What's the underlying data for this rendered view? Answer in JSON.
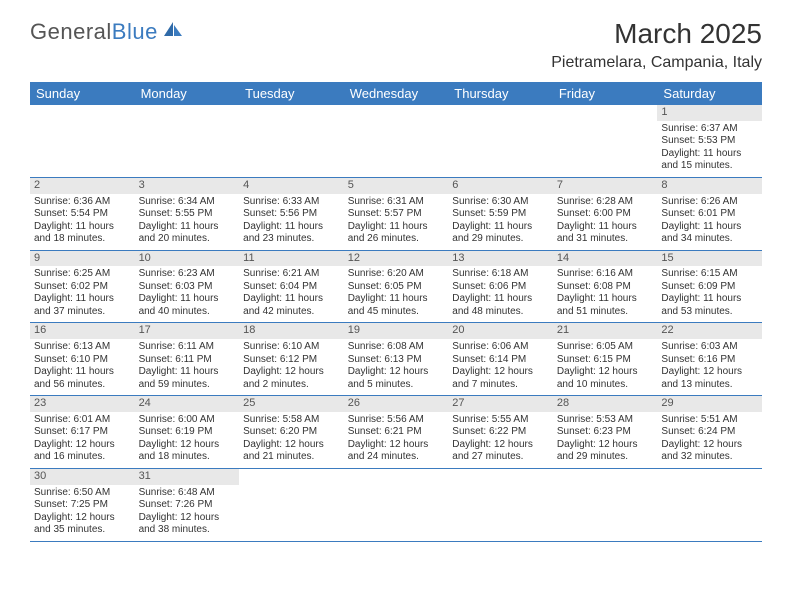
{
  "logo": {
    "first": "General",
    "second": "Blue"
  },
  "title": "March 2025",
  "location": "Pietramelara, Campania, Italy",
  "colors": {
    "header_bg": "#3b7bbf",
    "header_text": "#ffffff",
    "row_border": "#3b7bbf",
    "daynum_bg": "#e8e8e8",
    "logo_blue": "#3b7bbf"
  },
  "day_names": [
    "Sunday",
    "Monday",
    "Tuesday",
    "Wednesday",
    "Thursday",
    "Friday",
    "Saturday"
  ],
  "weeks": [
    [
      null,
      null,
      null,
      null,
      null,
      null,
      {
        "n": "1",
        "sr": "Sunrise: 6:37 AM",
        "ss": "Sunset: 5:53 PM",
        "d1": "Daylight: 11 hours",
        "d2": "and 15 minutes."
      }
    ],
    [
      {
        "n": "2",
        "sr": "Sunrise: 6:36 AM",
        "ss": "Sunset: 5:54 PM",
        "d1": "Daylight: 11 hours",
        "d2": "and 18 minutes."
      },
      {
        "n": "3",
        "sr": "Sunrise: 6:34 AM",
        "ss": "Sunset: 5:55 PM",
        "d1": "Daylight: 11 hours",
        "d2": "and 20 minutes."
      },
      {
        "n": "4",
        "sr": "Sunrise: 6:33 AM",
        "ss": "Sunset: 5:56 PM",
        "d1": "Daylight: 11 hours",
        "d2": "and 23 minutes."
      },
      {
        "n": "5",
        "sr": "Sunrise: 6:31 AM",
        "ss": "Sunset: 5:57 PM",
        "d1": "Daylight: 11 hours",
        "d2": "and 26 minutes."
      },
      {
        "n": "6",
        "sr": "Sunrise: 6:30 AM",
        "ss": "Sunset: 5:59 PM",
        "d1": "Daylight: 11 hours",
        "d2": "and 29 minutes."
      },
      {
        "n": "7",
        "sr": "Sunrise: 6:28 AM",
        "ss": "Sunset: 6:00 PM",
        "d1": "Daylight: 11 hours",
        "d2": "and 31 minutes."
      },
      {
        "n": "8",
        "sr": "Sunrise: 6:26 AM",
        "ss": "Sunset: 6:01 PM",
        "d1": "Daylight: 11 hours",
        "d2": "and 34 minutes."
      }
    ],
    [
      {
        "n": "9",
        "sr": "Sunrise: 6:25 AM",
        "ss": "Sunset: 6:02 PM",
        "d1": "Daylight: 11 hours",
        "d2": "and 37 minutes."
      },
      {
        "n": "10",
        "sr": "Sunrise: 6:23 AM",
        "ss": "Sunset: 6:03 PM",
        "d1": "Daylight: 11 hours",
        "d2": "and 40 minutes."
      },
      {
        "n": "11",
        "sr": "Sunrise: 6:21 AM",
        "ss": "Sunset: 6:04 PM",
        "d1": "Daylight: 11 hours",
        "d2": "and 42 minutes."
      },
      {
        "n": "12",
        "sr": "Sunrise: 6:20 AM",
        "ss": "Sunset: 6:05 PM",
        "d1": "Daylight: 11 hours",
        "d2": "and 45 minutes."
      },
      {
        "n": "13",
        "sr": "Sunrise: 6:18 AM",
        "ss": "Sunset: 6:06 PM",
        "d1": "Daylight: 11 hours",
        "d2": "and 48 minutes."
      },
      {
        "n": "14",
        "sr": "Sunrise: 6:16 AM",
        "ss": "Sunset: 6:08 PM",
        "d1": "Daylight: 11 hours",
        "d2": "and 51 minutes."
      },
      {
        "n": "15",
        "sr": "Sunrise: 6:15 AM",
        "ss": "Sunset: 6:09 PM",
        "d1": "Daylight: 11 hours",
        "d2": "and 53 minutes."
      }
    ],
    [
      {
        "n": "16",
        "sr": "Sunrise: 6:13 AM",
        "ss": "Sunset: 6:10 PM",
        "d1": "Daylight: 11 hours",
        "d2": "and 56 minutes."
      },
      {
        "n": "17",
        "sr": "Sunrise: 6:11 AM",
        "ss": "Sunset: 6:11 PM",
        "d1": "Daylight: 11 hours",
        "d2": "and 59 minutes."
      },
      {
        "n": "18",
        "sr": "Sunrise: 6:10 AM",
        "ss": "Sunset: 6:12 PM",
        "d1": "Daylight: 12 hours",
        "d2": "and 2 minutes."
      },
      {
        "n": "19",
        "sr": "Sunrise: 6:08 AM",
        "ss": "Sunset: 6:13 PM",
        "d1": "Daylight: 12 hours",
        "d2": "and 5 minutes."
      },
      {
        "n": "20",
        "sr": "Sunrise: 6:06 AM",
        "ss": "Sunset: 6:14 PM",
        "d1": "Daylight: 12 hours",
        "d2": "and 7 minutes."
      },
      {
        "n": "21",
        "sr": "Sunrise: 6:05 AM",
        "ss": "Sunset: 6:15 PM",
        "d1": "Daylight: 12 hours",
        "d2": "and 10 minutes."
      },
      {
        "n": "22",
        "sr": "Sunrise: 6:03 AM",
        "ss": "Sunset: 6:16 PM",
        "d1": "Daylight: 12 hours",
        "d2": "and 13 minutes."
      }
    ],
    [
      {
        "n": "23",
        "sr": "Sunrise: 6:01 AM",
        "ss": "Sunset: 6:17 PM",
        "d1": "Daylight: 12 hours",
        "d2": "and 16 minutes."
      },
      {
        "n": "24",
        "sr": "Sunrise: 6:00 AM",
        "ss": "Sunset: 6:19 PM",
        "d1": "Daylight: 12 hours",
        "d2": "and 18 minutes."
      },
      {
        "n": "25",
        "sr": "Sunrise: 5:58 AM",
        "ss": "Sunset: 6:20 PM",
        "d1": "Daylight: 12 hours",
        "d2": "and 21 minutes."
      },
      {
        "n": "26",
        "sr": "Sunrise: 5:56 AM",
        "ss": "Sunset: 6:21 PM",
        "d1": "Daylight: 12 hours",
        "d2": "and 24 minutes."
      },
      {
        "n": "27",
        "sr": "Sunrise: 5:55 AM",
        "ss": "Sunset: 6:22 PM",
        "d1": "Daylight: 12 hours",
        "d2": "and 27 minutes."
      },
      {
        "n": "28",
        "sr": "Sunrise: 5:53 AM",
        "ss": "Sunset: 6:23 PM",
        "d1": "Daylight: 12 hours",
        "d2": "and 29 minutes."
      },
      {
        "n": "29",
        "sr": "Sunrise: 5:51 AM",
        "ss": "Sunset: 6:24 PM",
        "d1": "Daylight: 12 hours",
        "d2": "and 32 minutes."
      }
    ],
    [
      {
        "n": "30",
        "sr": "Sunrise: 6:50 AM",
        "ss": "Sunset: 7:25 PM",
        "d1": "Daylight: 12 hours",
        "d2": "and 35 minutes."
      },
      {
        "n": "31",
        "sr": "Sunrise: 6:48 AM",
        "ss": "Sunset: 7:26 PM",
        "d1": "Daylight: 12 hours",
        "d2": "and 38 minutes."
      },
      null,
      null,
      null,
      null,
      null
    ]
  ]
}
